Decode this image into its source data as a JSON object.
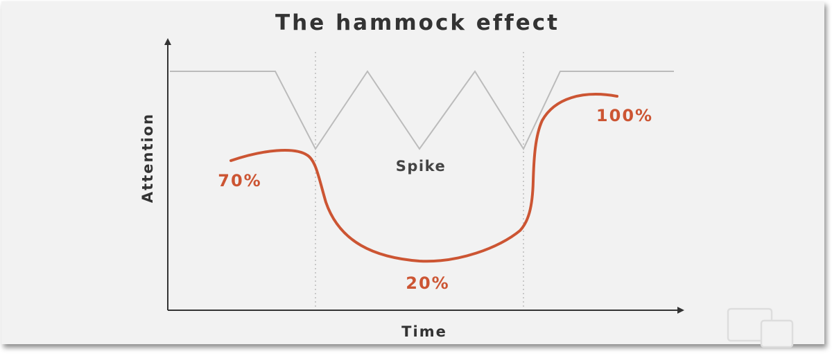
{
  "title": "The hammock effect",
  "x_axis_label": "Time",
  "y_axis_label": "Attention",
  "spike_label": "Spike",
  "labels": {
    "start": "70%",
    "middle": "20%",
    "end": "100%"
  },
  "colors": {
    "background": "#f2f2f2",
    "attention_curve": "#cc5533",
    "spike_line": "#bbbbbb",
    "axis": "#333333",
    "text": "#333333",
    "divider": "#bbbbbb"
  },
  "icons": [
    "devices-watermark-icon"
  ]
}
